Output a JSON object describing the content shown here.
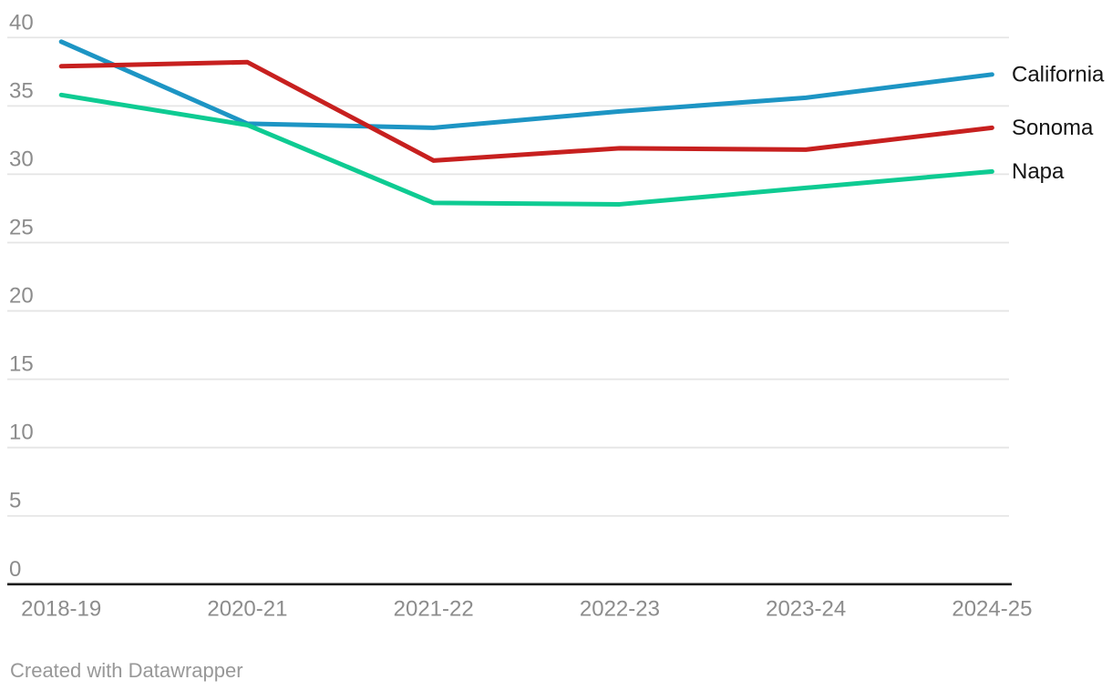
{
  "chart_data": {
    "type": "line",
    "title": "",
    "xlabel": "",
    "ylabel": "",
    "x_categories": [
      "2018-19",
      "2020-21",
      "2021-22",
      "2022-23",
      "2023-24",
      "2024-25"
    ],
    "series": [
      {
        "name": "California",
        "color": "#1d95c4",
        "values": [
          39.7,
          33.7,
          33.4,
          34.6,
          35.6,
          37.3
        ]
      },
      {
        "name": "Sonoma",
        "color": "#c7201f",
        "values": [
          37.9,
          38.2,
          31.0,
          31.9,
          31.8,
          33.4
        ]
      },
      {
        "name": "Napa",
        "color": "#0ecb92",
        "values": [
          35.8,
          33.6,
          27.9,
          27.8,
          29.0,
          30.2
        ]
      }
    ],
    "ylim": [
      0,
      40
    ],
    "yticks": [
      0,
      5,
      10,
      15,
      20,
      25,
      30,
      35,
      40
    ],
    "grid": "horizontal",
    "legend_position": "direct-right-labels",
    "line_width": 5
  },
  "colors": {
    "background": "#ffffff",
    "gridline": "#e5e5e5",
    "baseline": "#1a1a1a",
    "tick_label": "#8c8c8c",
    "series_label": "#141414",
    "attribution": "#989898"
  },
  "attribution": {
    "text": "Created with Datawrapper"
  }
}
